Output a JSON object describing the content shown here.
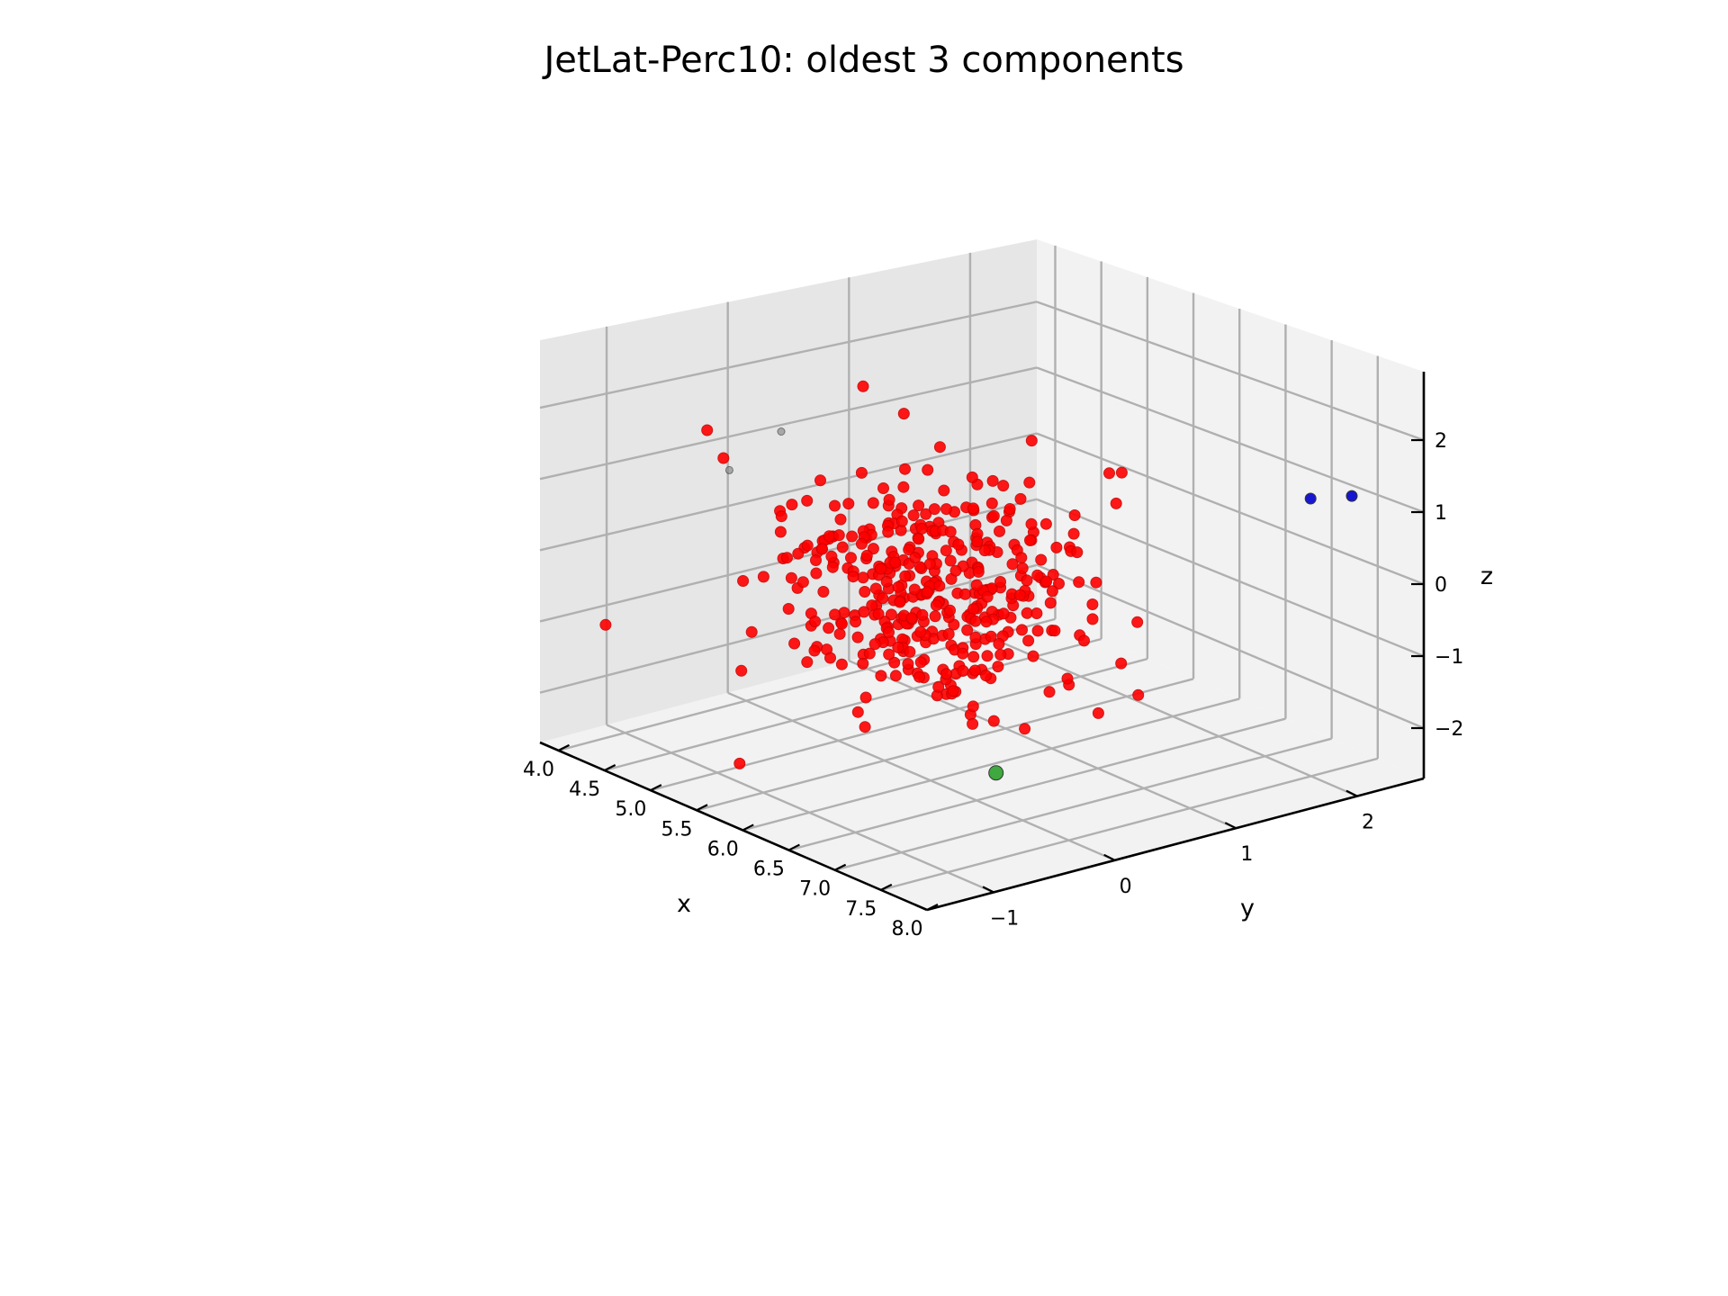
{
  "chart_data": {
    "type": "scatter",
    "title": "JetLat-Perc10: oldest 3 components",
    "xlabel": "x",
    "ylabel": "y",
    "zlabel": "z",
    "xlim": [
      3.8,
      8.0
    ],
    "ylim": [
      -1.55,
      2.55
    ],
    "zlim": [
      -2.7,
      2.95
    ],
    "x_ticks": [
      "4.0",
      "4.5",
      "5.0",
      "5.5",
      "6.0",
      "6.5",
      "7.0",
      "7.5",
      "8.0"
    ],
    "y_ticks": [
      "−1",
      "0",
      "1",
      "2"
    ],
    "z_ticks": [
      "−2",
      "−1",
      "0",
      "1",
      "2"
    ],
    "grid": true,
    "legend": "none",
    "series": [
      {
        "color": "#ff0000",
        "point_count": 400,
        "center": [
          6.0,
          0.0,
          0.0
        ],
        "spread": [
          0.55,
          0.5,
          0.75
        ]
      },
      {
        "color": "#0000cc",
        "points": [
          [
            7.1,
            2.3,
            0.85
          ],
          [
            7.35,
            2.45,
            0.95
          ]
        ]
      },
      {
        "color": "#2ca02c",
        "points": [
          [
            7.5,
            -0.6,
            -1.55
          ]
        ]
      },
      {
        "color": "#808080",
        "points": [
          [
            5.3,
            -0.7,
            2.05
          ],
          [
            5.0,
            -0.9,
            1.45
          ]
        ]
      }
    ]
  }
}
